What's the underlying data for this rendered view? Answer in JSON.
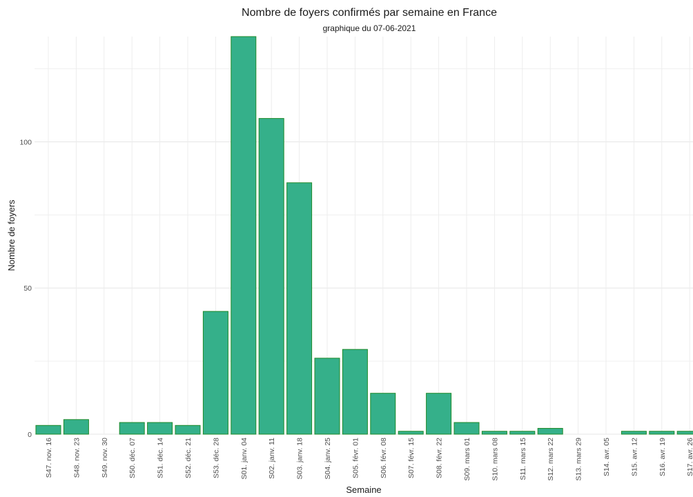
{
  "chart_data": {
    "type": "bar",
    "title": "Nombre de foyers confirmés par semaine en France",
    "subtitle": "graphique du 07-06-2021",
    "xlabel": "Semaine",
    "ylabel": "Nombre de foyers",
    "categories": [
      "S47. nov. 16",
      "S48. nov. 23",
      "S49. nov. 30",
      "S50. déc. 07",
      "S51. déc. 14",
      "S52. déc. 21",
      "S53. déc. 28",
      "S01. janv. 04",
      "S02. janv. 11",
      "S03. janv. 18",
      "S04. janv. 25",
      "S05. févr. 01",
      "S06. févr. 08",
      "S07. févr. 15",
      "S08. févr. 22",
      "S09. mars 01",
      "S10. mars 08",
      "S11. mars 15",
      "S12. mars 22",
      "S13. mars 29",
      "S14. avr. 05",
      "S15. avr. 12",
      "S16. avr. 19",
      "S17. avr. 26"
    ],
    "values": [
      3,
      5,
      0,
      4,
      4,
      3,
      42,
      136,
      108,
      86,
      26,
      29,
      14,
      1,
      14,
      4,
      1,
      1,
      2,
      0,
      0,
      1,
      1,
      1
    ],
    "ylim": [
      0,
      136
    ],
    "yticks": [
      "0",
      "50",
      "100"
    ],
    "grid": true,
    "legend": "none",
    "bar_fill": "#35b08a",
    "bar_stroke": "#1f8a2a"
  }
}
